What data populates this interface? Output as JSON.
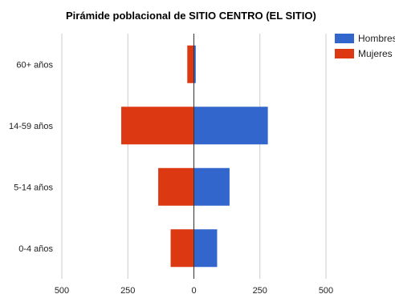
{
  "chart_data": {
    "type": "bar",
    "orientation": "horizontal",
    "stacked_diverging": true,
    "title": "Pirámide poblacional de SITIO CENTRO (EL SITIO)",
    "xlabel": "",
    "ylabel": "",
    "categories": [
      "60+ años",
      "14-59 años",
      "5-14 años",
      "0-4 años"
    ],
    "series": [
      {
        "name": "Hombres",
        "color": "#3366cc",
        "values": [
          7,
          280,
          135,
          88
        ]
      },
      {
        "name": "Mujeres",
        "color": "#dc3912",
        "values": [
          25,
          275,
          135,
          88
        ]
      }
    ],
    "x_ticks": [
      -500,
      -250,
      0,
      250,
      500
    ],
    "x_tick_labels": [
      "500",
      "250",
      "0",
      "250",
      "500"
    ],
    "xlim": [
      -500,
      500
    ],
    "grid": true,
    "legend_position": "top-right"
  }
}
